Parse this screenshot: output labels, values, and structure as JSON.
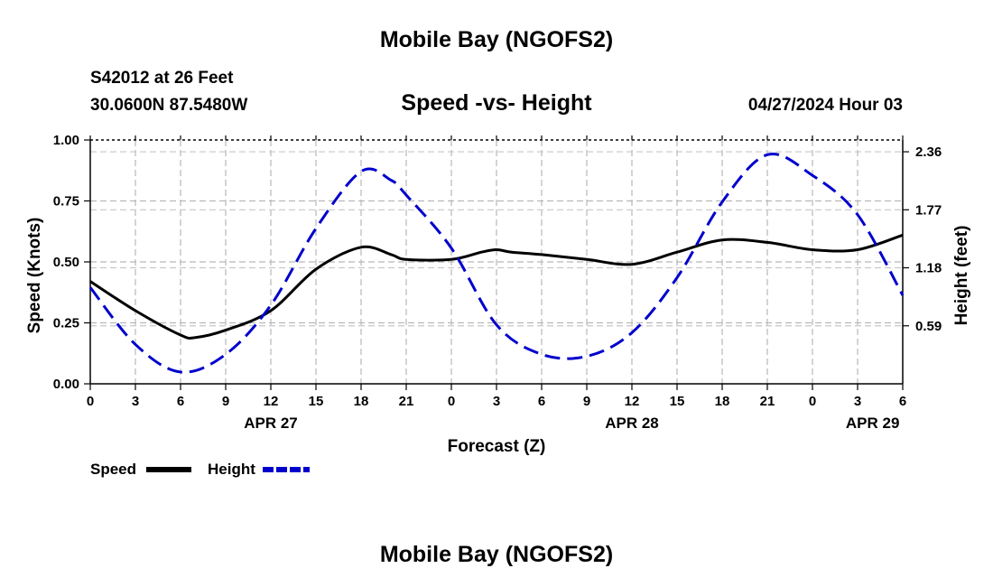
{
  "header": {
    "title": "Mobile Bay (NGOFS2)",
    "station": "S42012 at 26 Feet",
    "coordinates": "30.0600N  87.5480W",
    "datetime": "04/27/2024 Hour 03"
  },
  "footer": {
    "title": "Mobile Bay (NGOFS2)"
  },
  "chart_data": {
    "type": "line",
    "title": "Speed -vs- Height",
    "xlabel": "Forecast (Z)",
    "ylabel_left": "Speed (Knots)",
    "ylabel_right": "Height (feet)",
    "x_range": [
      0,
      54
    ],
    "x_tick_labels": [
      "0",
      "3",
      "6",
      "9",
      "12",
      "15",
      "18",
      "21",
      "0",
      "3",
      "6",
      "9",
      "12",
      "15",
      "18",
      "21",
      "0",
      "3",
      "6"
    ],
    "date_labels": [
      {
        "label": "APR 27",
        "at_hour": 12
      },
      {
        "label": "APR 28",
        "at_hour": 36
      },
      {
        "label": "APR 29",
        "at_hour": 52
      }
    ],
    "y_left": {
      "range": [
        0,
        1
      ],
      "ticks": [
        "0.00",
        "0.25",
        "0.50",
        "0.75",
        "1.00"
      ]
    },
    "y_right": {
      "range": [
        0,
        2.48
      ],
      "ticks": [
        "0.59",
        "1.18",
        "1.77",
        "2.36"
      ]
    },
    "grid": true,
    "legend_placement": "bottom-left",
    "series": [
      {
        "name": "Speed",
        "axis": "left",
        "color": "#000000",
        "style": "solid",
        "x": [
          0,
          3,
          6,
          7,
          9,
          12,
          15,
          18,
          20,
          21,
          24,
          26,
          27,
          28,
          30,
          33,
          36,
          39,
          42,
          45,
          48,
          51,
          54
        ],
        "values": [
          0.42,
          0.3,
          0.2,
          0.19,
          0.22,
          0.3,
          0.47,
          0.56,
          0.53,
          0.51,
          0.51,
          0.54,
          0.55,
          0.54,
          0.53,
          0.51,
          0.49,
          0.54,
          0.59,
          0.58,
          0.55,
          0.55,
          0.61
        ]
      },
      {
        "name": "Height",
        "axis": "right",
        "color": "#0000cc",
        "style": "dashed",
        "x": [
          0,
          3,
          6,
          9,
          12,
          15,
          18,
          20,
          21,
          24,
          27,
          30,
          33,
          36,
          39,
          42,
          45,
          48,
          51,
          54
        ],
        "values": [
          0.98,
          0.4,
          0.12,
          0.3,
          0.8,
          1.58,
          2.16,
          2.07,
          1.92,
          1.38,
          0.6,
          0.3,
          0.28,
          0.52,
          1.08,
          1.85,
          2.33,
          2.12,
          1.72,
          0.9
        ]
      }
    ]
  }
}
